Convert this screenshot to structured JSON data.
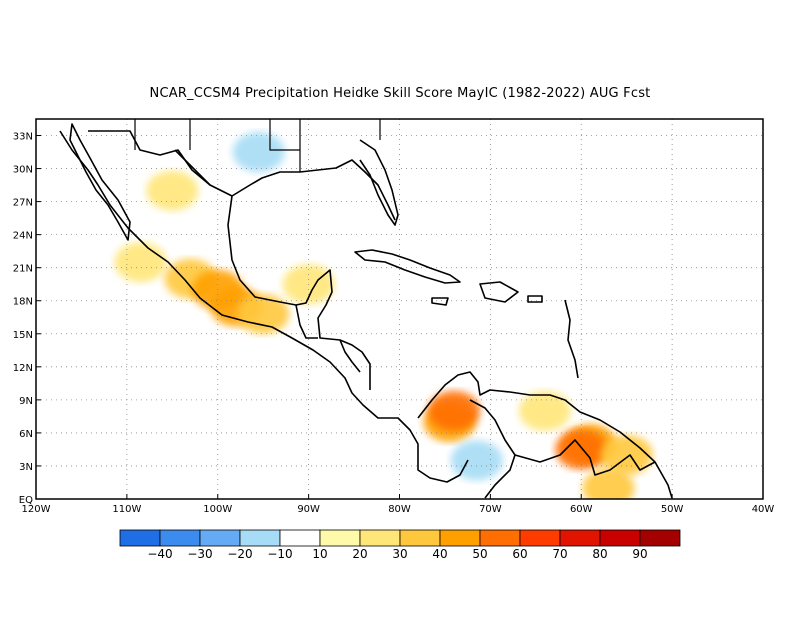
{
  "title": "NCAR_CCSM4  Precipitation Heidke Skill Score MayIC (1982-2022) AUG Fcst",
  "map": {
    "lon_range": [
      -120,
      -40
    ],
    "lat_range": [
      0,
      34.5
    ],
    "lon_ticks": [
      "120W",
      "110W",
      "100W",
      "90W",
      "80W",
      "70W",
      "60W",
      "50W",
      "40W"
    ],
    "lat_ticks": [
      "EQ",
      "3N",
      "6N",
      "9N",
      "12N",
      "15N",
      "18N",
      "21N",
      "24N",
      "27N",
      "30N",
      "33N"
    ],
    "grid": "dotted",
    "regions": [
      {
        "name": "baja-north",
        "lon": -108.5,
        "lat": 21.5,
        "level": 20
      },
      {
        "name": "west-mexico",
        "lon": -103,
        "lat": 20,
        "level": 30
      },
      {
        "name": "central-mexico",
        "lon": -100,
        "lat": 19,
        "level": 40
      },
      {
        "name": "guerrero",
        "lon": -98,
        "lat": 17.5,
        "level": 40
      },
      {
        "name": "oaxaca",
        "lon": -95,
        "lat": 16.8,
        "level": 30
      },
      {
        "name": "yucatan",
        "lon": -90,
        "lat": 19.5,
        "level": 20
      },
      {
        "name": "north-mexico",
        "lon": -105,
        "lat": 28,
        "level": 20
      },
      {
        "name": "texas",
        "lon": -95.5,
        "lat": 31.5,
        "level": -10
      },
      {
        "name": "colombia",
        "lon": -74.5,
        "lat": 7,
        "level": 40
      },
      {
        "name": "colombia-core",
        "lon": -74,
        "lat": 8,
        "level": 50
      },
      {
        "name": "venezuela-east",
        "lon": -64,
        "lat": 8,
        "level": 20
      },
      {
        "name": "guyana",
        "lon": -59,
        "lat": 5,
        "level": 40
      },
      {
        "name": "guyana-core",
        "lon": -60,
        "lat": 4.5,
        "level": 50
      },
      {
        "name": "suriname",
        "lon": -55,
        "lat": 4,
        "level": 30
      },
      {
        "name": "brazil-north",
        "lon": -57,
        "lat": 1,
        "level": 30
      },
      {
        "name": "colombia-south",
        "lon": -71.5,
        "lat": 3.5,
        "level": -10
      }
    ]
  },
  "colorbar": {
    "colors": [
      "#1f6ee6",
      "#3c8cf0",
      "#64aaf5",
      "#a6dcf5",
      "#ffffff",
      "#fffaaa",
      "#ffe678",
      "#ffc83c",
      "#ffa000",
      "#ff6e00",
      "#ff3c00",
      "#e11400",
      "#c80000",
      "#a50000"
    ],
    "labels": [
      "−40",
      "−30",
      "−20",
      "−10",
      "10",
      "20",
      "30",
      "40",
      "50",
      "60",
      "70",
      "80",
      "90"
    ]
  }
}
